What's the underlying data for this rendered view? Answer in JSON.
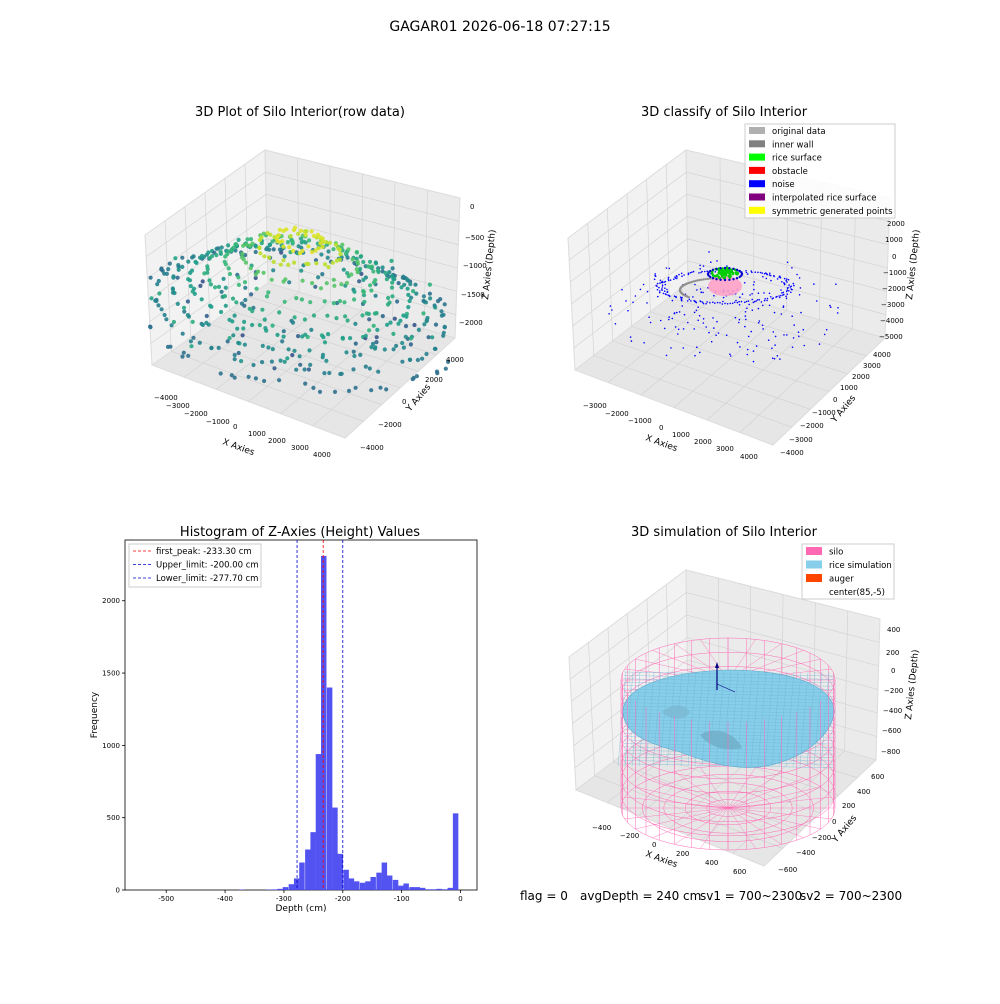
{
  "suptitle": "GAGAR01 2026-06-18 07:27:15",
  "footer": {
    "flag": "flag = 0",
    "avg_depth": "avgDepth = 240 cm",
    "sv1": "sv1 = 700~2300",
    "sv2": "sv2 = 700~2300"
  },
  "colors": {
    "pane": "#f2f2f2",
    "pane_edge": "#d8d8d8",
    "hist_bar": "#4a4af0",
    "peak_line": "#ff0000",
    "limit_line": "#0000cc"
  },
  "chart_data": [
    {
      "type": "scatter",
      "projection": "3d",
      "title": "3D Plot of Silo Interior(row data)",
      "xlabel": "X Axies",
      "ylabel": "Y Axies",
      "zlabel": "Z Axies (Depth)",
      "x_ticks": [
        "−4000",
        "−3000",
        "−2000",
        "−1000",
        "0",
        "1000",
        "2000",
        "3000",
        "4000"
      ],
      "y_ticks": [
        "−4000",
        "−2000",
        "0",
        "2000",
        "4000"
      ],
      "z_ticks": [
        "0",
        "−500",
        "−1000",
        "−1500",
        "−2000"
      ],
      "xlim": [
        -4000,
        4000
      ],
      "ylim": [
        -4000,
        4000
      ],
      "zlim": [
        -2400,
        0
      ],
      "colormap": "viridis",
      "grid": true
    },
    {
      "type": "scatter",
      "projection": "3d",
      "title": "3D classify of Silo Interior",
      "xlabel": "X Axies",
      "ylabel": "Y Axies",
      "zlabel": "Z Axies (Depth)",
      "x_ticks": [
        "−3000",
        "−2000",
        "−1000",
        "0",
        "1000",
        "2000",
        "3000",
        "4000"
      ],
      "y_ticks": [
        "−4000",
        "−3000",
        "−2000",
        "−1000",
        "0",
        "1000",
        "2000",
        "3000",
        "4000"
      ],
      "z_ticks": [
        "2000",
        "1000",
        "0",
        "−1000",
        "−2000",
        "−3000",
        "−4000",
        "−5000"
      ],
      "legend_position": "top-right",
      "legend": [
        {
          "label": "original data",
          "color": "#b0b0b0"
        },
        {
          "label": "inner wall",
          "color": "#808080"
        },
        {
          "label": "rice surface",
          "color": "#00ff00"
        },
        {
          "label": "obstacle",
          "color": "#ff0000"
        },
        {
          "label": "noise",
          "color": "#0000ff"
        },
        {
          "label": "interpolated rice surface",
          "color": "#800080"
        },
        {
          "label": "symmetric generated points",
          "color": "#ffff00"
        }
      ],
      "grid": true
    },
    {
      "type": "bar",
      "subtype": "histogram",
      "title": "Histogram of Z-Axies (Height) Values",
      "xlabel": "Depth (cm)",
      "ylabel": "Frequency",
      "xlim": [
        -570,
        28
      ],
      "ylim": [
        0,
        2420
      ],
      "x_ticks": [
        -500,
        -400,
        -300,
        -200,
        -100,
        0
      ],
      "y_ticks": [
        0,
        500,
        1000,
        1500,
        2000
      ],
      "bin_width": 9.3,
      "bins": [
        [
          -377,
          3
        ],
        [
          -330,
          3
        ],
        [
          -320,
          4
        ],
        [
          -311,
          8
        ],
        [
          -302,
          20
        ],
        [
          -292,
          40
        ],
        [
          -283,
          80
        ],
        [
          -274,
          190
        ],
        [
          -264,
          280
        ],
        [
          -255,
          400
        ],
        [
          -246,
          940
        ],
        [
          -237,
          2310
        ],
        [
          -227,
          1400
        ],
        [
          -218,
          570
        ],
        [
          -209,
          250
        ],
        [
          -199,
          140
        ],
        [
          -190,
          80
        ],
        [
          -181,
          60
        ],
        [
          -171,
          50
        ],
        [
          -162,
          60
        ],
        [
          -153,
          90
        ],
        [
          -143,
          120
        ],
        [
          -134,
          190
        ],
        [
          -125,
          100
        ],
        [
          -115,
          70
        ],
        [
          -106,
          30
        ],
        [
          -97,
          45
        ],
        [
          -87,
          20
        ],
        [
          -78,
          20
        ],
        [
          -69,
          15
        ],
        [
          -59,
          5
        ],
        [
          -50,
          5
        ],
        [
          -41,
          8
        ],
        [
          -31,
          5
        ],
        [
          -22,
          15
        ],
        [
          -13,
          530
        ]
      ],
      "vlines": [
        {
          "label": "first_peak: -233.30 cm",
          "x": -233.3,
          "color": "#ff0000"
        },
        {
          "label": "Upper_limit: -200.00 cm",
          "x": -200.0,
          "color": "#0000cc"
        },
        {
          "label": "Lower_limit: -277.70 cm",
          "x": -277.7,
          "color": "#0000cc"
        }
      ],
      "legend_position": "top-left"
    },
    {
      "type": "surface",
      "projection": "3d",
      "title": "3D simulation of Silo Interior",
      "xlabel": "X Axies",
      "ylabel": "Y Axies",
      "zlabel": "Z Axies (Depth)",
      "x_ticks": [
        "−400",
        "−200",
        "0",
        "200",
        "400",
        "600"
      ],
      "y_ticks": [
        "−600",
        "−400",
        "−200",
        "0",
        "200",
        "400",
        "600"
      ],
      "z_ticks": [
        "400",
        "200",
        "0",
        "−200",
        "−400",
        "−600",
        "−800"
      ],
      "legend_position": "top-right",
      "legend": [
        {
          "label": "silo",
          "color": "#ff69b4"
        },
        {
          "label": "rice simulation",
          "color": "#87ceeb"
        },
        {
          "label": "auger",
          "color": "#ff4500"
        },
        {
          "label": "center(85,-5)",
          "color": ""
        }
      ],
      "grid": true
    }
  ]
}
